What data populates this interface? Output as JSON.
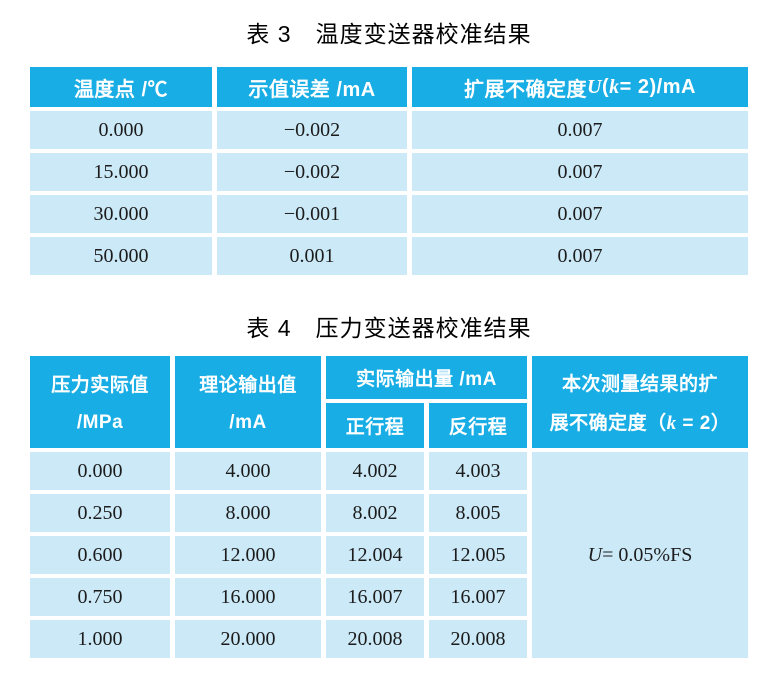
{
  "colors": {
    "header_bg": "#18ade4",
    "row_bg": "#cbe9f7",
    "header_text": "#ffffff",
    "body_text": "#1c1c1c",
    "page_bg": "#ffffff"
  },
  "table3": {
    "title": "表 3　温度变送器校准结果",
    "headers": {
      "col1": "温度点 /℃",
      "col2": "示值误差 /mA",
      "col3_prefix": "扩展不确定度 ",
      "col3_U": "U",
      "col3_open": "(",
      "col3_k": "k",
      "col3_suffix": " = 2)/mA"
    },
    "rows": [
      {
        "temp": "0.000",
        "error": "−0.002",
        "uncertainty": "0.007"
      },
      {
        "temp": "15.000",
        "error": "−0.002",
        "uncertainty": "0.007"
      },
      {
        "temp": "30.000",
        "error": "−0.001",
        "uncertainty": "0.007"
      },
      {
        "temp": "50.000",
        "error": "0.001",
        "uncertainty": "0.007"
      }
    ]
  },
  "table4": {
    "title": "表 4　压力变送器校准结果",
    "headers": {
      "col1_line1": "压力实际值",
      "col1_line2": "/MPa",
      "col2_line1": "理论输出值",
      "col2_line2": "/mA",
      "col3_group": "实际输出量 /mA",
      "col3_sub1": "正行程",
      "col3_sub2": "反行程",
      "col4_line1": "本次测量结果的扩",
      "col4_line2_prefix": "展不确定度（",
      "col4_k": "k",
      "col4_line2_suffix": " = 2）"
    },
    "rows": [
      {
        "pressure": "0.000",
        "theoretical": "4.000",
        "forward": "4.002",
        "reverse": "4.003"
      },
      {
        "pressure": "0.250",
        "theoretical": "8.000",
        "forward": "8.002",
        "reverse": "8.005"
      },
      {
        "pressure": "0.600",
        "theoretical": "12.000",
        "forward": "12.004",
        "reverse": "12.005"
      },
      {
        "pressure": "0.750",
        "theoretical": "16.000",
        "forward": "16.007",
        "reverse": "16.007"
      },
      {
        "pressure": "1.000",
        "theoretical": "20.000",
        "forward": "20.008",
        "reverse": "20.008"
      }
    ],
    "uncertainty_U": "U",
    "uncertainty_value": " = 0.05%FS"
  }
}
